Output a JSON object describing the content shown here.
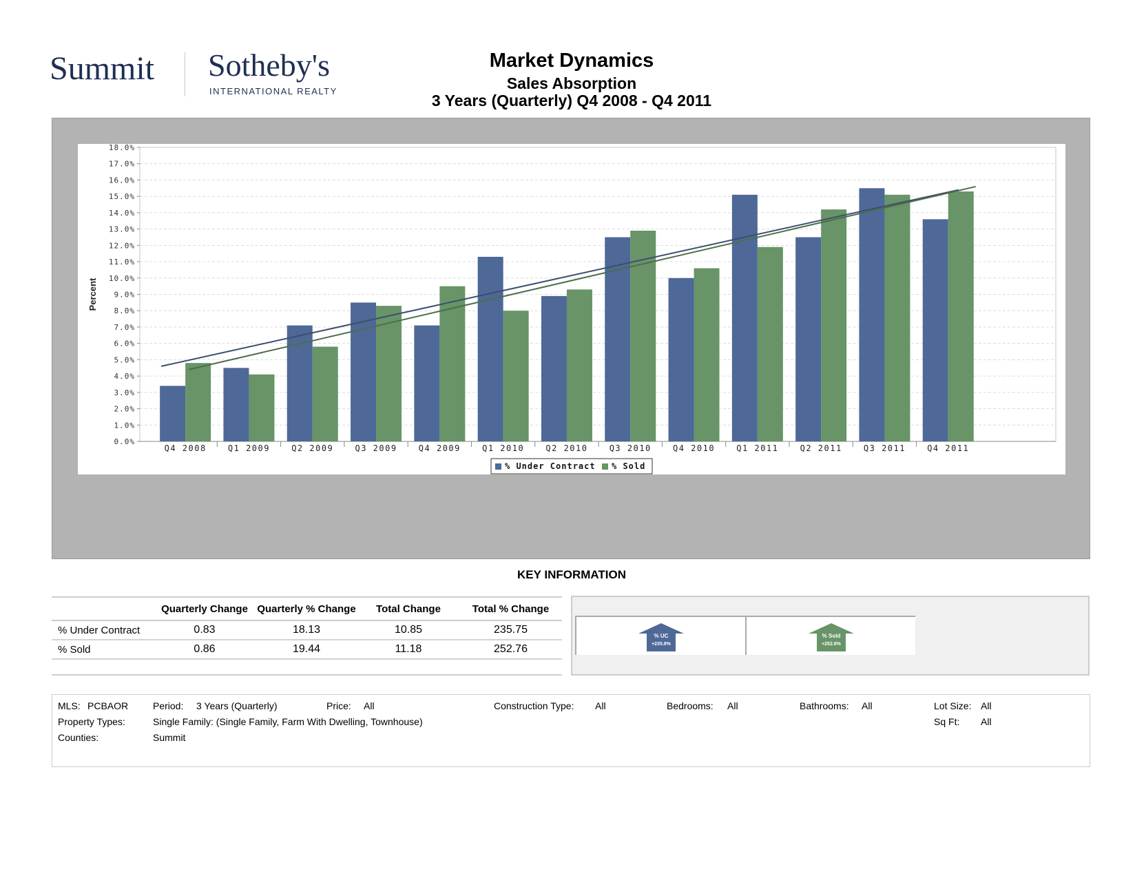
{
  "header": {
    "logo_left": "Summit",
    "logo_right": "Sotheby's",
    "logo_right_sub": "INTERNATIONAL REALTY",
    "title": "Market Dynamics",
    "subtitle": "Sales Absorption",
    "period": "3 Years (Quarterly) Q4 2008 - Q4 2011"
  },
  "chart_data": {
    "type": "bar",
    "ylabel": "Percent",
    "xlabel": "",
    "ylim": [
      0,
      18
    ],
    "y_ticks": [
      "0.0%",
      "1.0%",
      "2.0%",
      "3.0%",
      "4.0%",
      "5.0%",
      "6.0%",
      "7.0%",
      "8.0%",
      "9.0%",
      "10.0%",
      "11.0%",
      "12.0%",
      "13.0%",
      "14.0%",
      "15.0%",
      "16.0%",
      "17.0%",
      "18.0%"
    ],
    "categories": [
      "Q4 2008",
      "Q1 2009",
      "Q2 2009",
      "Q3 2009",
      "Q4 2009",
      "Q1 2010",
      "Q2 2010",
      "Q3 2010",
      "Q4 2010",
      "Q1 2011",
      "Q2 2011",
      "Q3 2011",
      "Q4 2011"
    ],
    "series": [
      {
        "name": "% Under Contract",
        "color": "#4e6897",
        "values": [
          3.4,
          4.5,
          7.1,
          8.5,
          7.1,
          11.3,
          8.9,
          12.5,
          10.0,
          15.1,
          12.5,
          15.5,
          13.6
        ]
      },
      {
        "name": "% Sold",
        "color": "#689467",
        "values": [
          4.8,
          4.1,
          5.8,
          8.3,
          9.5,
          8.0,
          9.3,
          12.9,
          10.6,
          11.9,
          14.2,
          15.1,
          15.3
        ]
      }
    ],
    "trendlines": [
      {
        "series": "% Under Contract",
        "color": "#3c4e6e",
        "start": 4.6,
        "end": 15.4
      },
      {
        "series": "% Sold",
        "color": "#4b6e4b",
        "start": 4.4,
        "end": 15.6
      }
    ],
    "grid": true,
    "legend": "bottom-center"
  },
  "key_info": {
    "heading": "KEY INFORMATION",
    "columns": [
      "",
      "Quarterly Change",
      "Quarterly % Change",
      "Total Change",
      "Total % Change"
    ],
    "rows": [
      {
        "label": "% Under Contract",
        "values": [
          "0.83",
          "18.13",
          "10.85",
          "235.75"
        ]
      },
      {
        "label": "% Sold",
        "values": [
          "0.86",
          "19.44",
          "11.18",
          "252.76"
        ]
      }
    ],
    "badges": [
      {
        "label": "% UC",
        "value": "+235.8%",
        "color": "#4e6897"
      },
      {
        "label": "% Sold",
        "value": "+252.8%",
        "color": "#689467"
      }
    ]
  },
  "filters": {
    "mls_label": "MLS:",
    "mls_value": "PCBAOR",
    "period_label": "Period:",
    "period_value": "3 Years (Quarterly)",
    "price_label": "Price:",
    "price_value": "All",
    "construction_label": "Construction Type:",
    "construction_value": "All",
    "bedrooms_label": "Bedrooms:",
    "bedrooms_value": "All",
    "bathrooms_label": "Bathrooms:",
    "bathrooms_value": "All",
    "lot_label": "Lot Size:",
    "lot_value": "All",
    "property_label": "Property Types:",
    "property_value": "Single Family: (Single Family, Farm With Dwelling, Townhouse)",
    "sqft_label": "Sq Ft:",
    "sqft_value": "All",
    "counties_label": "Counties:",
    "counties_value": "Summit"
  }
}
